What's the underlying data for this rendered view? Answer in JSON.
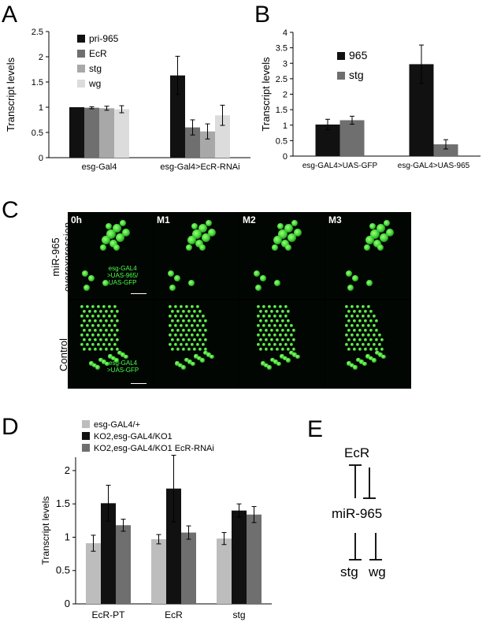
{
  "panels": {
    "A": "A",
    "B": "B",
    "C": "C",
    "D": "D",
    "E": "E"
  },
  "colors": {
    "black": "#111111",
    "darkgray": "#6f6f6f",
    "midgray": "#a8a8a8",
    "lightgray": "#dcdcdc",
    "green": "#48ff48"
  },
  "chart_data": [
    {
      "panel": "A",
      "type": "bar",
      "title": "",
      "xlabel": "",
      "ylabel": "Transcript levels",
      "ylim": [
        0,
        2.5
      ],
      "yticks": [
        "0",
        "0.5",
        "1",
        "1.5",
        "2",
        "2.5"
      ],
      "categories": [
        "esg-Gal4",
        "esg-Gal4>EcR-RNAi"
      ],
      "series": [
        {
          "name": "pri-965",
          "values": [
            1.0,
            1.63
          ],
          "errors": [
            0.0,
            0.38
          ]
        },
        {
          "name": "EcR",
          "values": [
            0.99,
            0.6
          ],
          "errors": [
            0.02,
            0.15
          ]
        },
        {
          "name": "stg",
          "values": [
            0.98,
            0.52
          ],
          "errors": [
            0.04,
            0.15
          ]
        },
        {
          "name": "wg",
          "values": [
            0.96,
            0.84
          ],
          "errors": [
            0.07,
            0.2
          ]
        }
      ],
      "legend": "top-left inside",
      "grid": false
    },
    {
      "panel": "B",
      "type": "bar",
      "title": "",
      "xlabel": "",
      "ylabel": "Transcript levels",
      "ylim": [
        0,
        4
      ],
      "yticks": [
        "0",
        "0.5",
        "1",
        "1.5",
        "2",
        "2.5",
        "3",
        "3.5",
        "4"
      ],
      "categories": [
        "esg-GAL4>UAS-GFP",
        "esg-GAL4>UAS-965"
      ],
      "series": [
        {
          "name": "965",
          "values": [
            1.02,
            2.97
          ],
          "errors": [
            0.17,
            0.62
          ]
        },
        {
          "name": "stg",
          "values": [
            1.16,
            0.38
          ],
          "errors": [
            0.13,
            0.15
          ]
        }
      ],
      "legend": "top-left inside",
      "grid": false
    },
    {
      "panel": "D",
      "type": "bar",
      "title": "",
      "xlabel": "",
      "ylabel": "Transcript levels",
      "ylim": [
        0,
        2.2
      ],
      "yticks": [
        "0",
        "0.5",
        "1",
        "1.5",
        "2"
      ],
      "categories": [
        "EcR-PT",
        "EcR",
        "stg"
      ],
      "series": [
        {
          "name": "esg-GAL4/+",
          "values": [
            0.91,
            0.97,
            0.98
          ],
          "errors": [
            0.12,
            0.07,
            0.09
          ]
        },
        {
          "name": "KO2,esg-GAL4/KO1",
          "values": [
            1.51,
            1.73,
            1.4
          ],
          "errors": [
            0.27,
            0.5,
            0.1
          ]
        },
        {
          "name": "KO2,esg-GAL4/KO1 EcR-RNAi",
          "values": [
            1.18,
            1.07,
            1.34
          ],
          "errors": [
            0.09,
            0.1,
            0.12
          ]
        }
      ],
      "legend": "top",
      "grid": false
    }
  ],
  "microscopy": {
    "timepoints": [
      "0h",
      "M1",
      "M2",
      "M3"
    ],
    "rows": [
      "miR-965\noverexpression",
      "Control"
    ],
    "row_labels": [
      "miR-965",
      "overexpression",
      "Control"
    ],
    "genotype_top": [
      "esg-GAL4",
      ">UAS-965/",
      "UAS-GFP"
    ],
    "genotype_bottom": [
      "esg-GAL4",
      ">UAS-GFP"
    ],
    "scale": "10 μm"
  },
  "diagram_e": {
    "nodes": [
      "EcR",
      "miR-965",
      "stg",
      "wg"
    ]
  }
}
